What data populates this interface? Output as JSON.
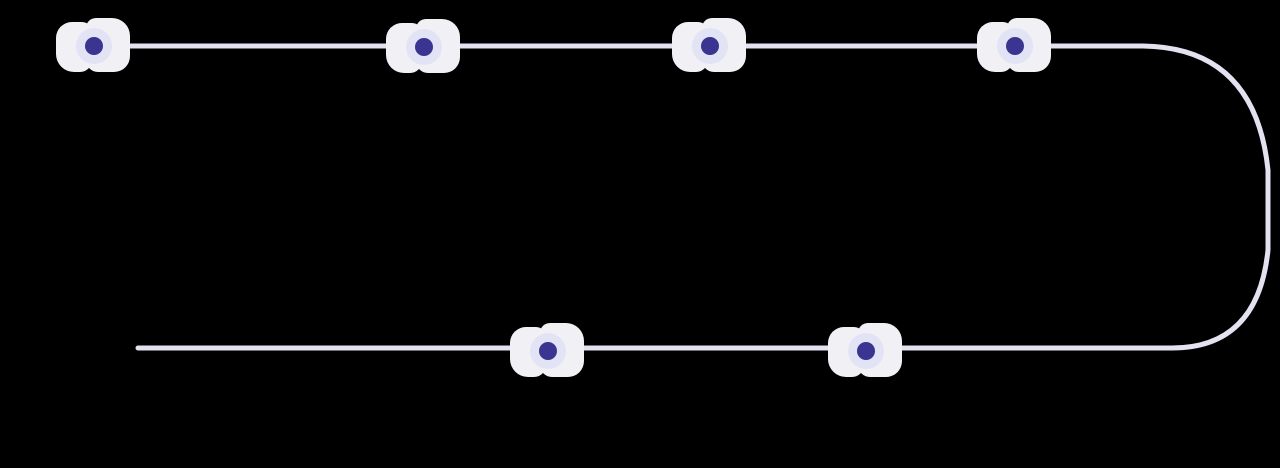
{
  "colors": {
    "background": "#000000",
    "track": "#e4e2f0",
    "node_backdrop": "#f0f0f5",
    "node_dot": "#3a3590"
  },
  "diagram": {
    "type": "timeline-track",
    "shape": "stadium (top line, rounded right end, bottom line)",
    "top_row_nodes": 4,
    "bottom_row_nodes": 2
  }
}
